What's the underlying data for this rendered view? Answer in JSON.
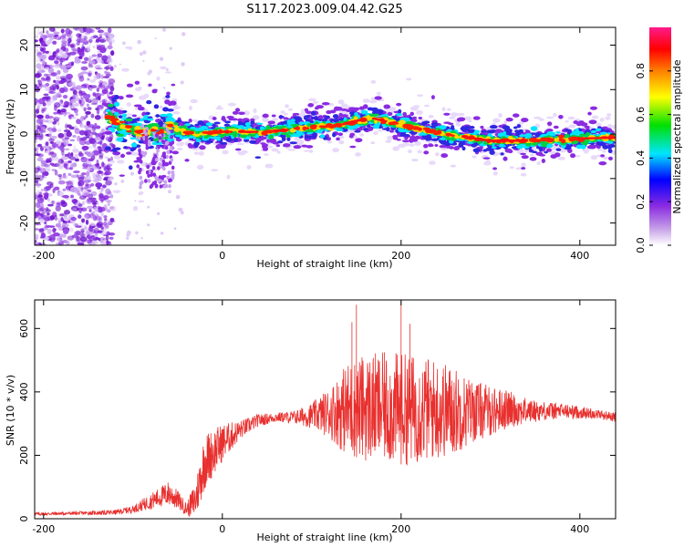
{
  "title": "S117.2023.009.04.42.G25",
  "chart_data": [
    {
      "type": "heatmap",
      "xlabel": "Height of straight line (km)",
      "ylabel": "Frequency (Hz)",
      "xlim": [
        -210,
        440
      ],
      "ylim": [
        -25,
        24
      ],
      "xticks": [
        -200,
        0,
        200,
        400
      ],
      "yticks": [
        -20,
        -10,
        0,
        10,
        20
      ],
      "colorbar": {
        "label": "Normalized spectral amplitude",
        "range": [
          0,
          1
        ],
        "ticks": [
          "0.0",
          "0.2",
          "0.4",
          "0.6",
          "0.8"
        ],
        "colors": [
          "#ffffff",
          "#8a2be2",
          "#0000ff",
          "#00e5ff",
          "#00e000",
          "#ffff00",
          "#ff8000",
          "#ff0000",
          "#ff1a8c"
        ]
      },
      "ridge": {
        "x": [
          -125,
          -115,
          -100,
          -90,
          -80,
          -70,
          -60,
          -50,
          -30,
          0,
          50,
          100,
          130,
          150,
          170,
          200,
          250,
          300,
          350,
          400,
          440
        ],
        "y": [
          4,
          2,
          1,
          0,
          1,
          0,
          2,
          1,
          0,
          0.5,
          0.5,
          1.5,
          2,
          3,
          3.5,
          2,
          0,
          -1.5,
          -1.5,
          -1,
          -0.8
        ]
      }
    },
    {
      "type": "line",
      "xlabel": "Height of straight line (km)",
      "ylabel": "SNR (10 * v/v)",
      "xlim": [
        -210,
        440
      ],
      "ylim": [
        0,
        690
      ],
      "xticks": [
        -200,
        0,
        200,
        400
      ],
      "yticks": [
        0,
        200,
        400,
        600
      ],
      "color": "#e8302e",
      "envelope": {
        "x": [
          -210,
          -150,
          -120,
          -100,
          -80,
          -60,
          -50,
          -40,
          -30,
          -20,
          0,
          20,
          40,
          60,
          80,
          100,
          120,
          140,
          160,
          180,
          200,
          220,
          240,
          260,
          280,
          300,
          320,
          340,
          360,
          380,
          400,
          420,
          440
        ],
        "mean": [
          15,
          18,
          20,
          30,
          55,
          80,
          60,
          30,
          60,
          180,
          240,
          280,
          310,
          320,
          320,
          325,
          335,
          345,
          350,
          350,
          345,
          345,
          345,
          340,
          340,
          340,
          345,
          340,
          340,
          340,
          335,
          330,
          320
        ],
        "spread": [
          5,
          6,
          8,
          12,
          25,
          40,
          30,
          20,
          60,
          90,
          60,
          30,
          20,
          15,
          20,
          40,
          80,
          150,
          170,
          175,
          180,
          170,
          160,
          140,
          100,
          80,
          60,
          40,
          30,
          25,
          20,
          15,
          15
        ]
      },
      "peaks": [
        {
          "x": 150,
          "y": 675
        },
        {
          "x": 200,
          "y": 690
        },
        {
          "x": 145,
          "y": 620
        },
        {
          "x": 210,
          "y": 615
        }
      ]
    }
  ]
}
